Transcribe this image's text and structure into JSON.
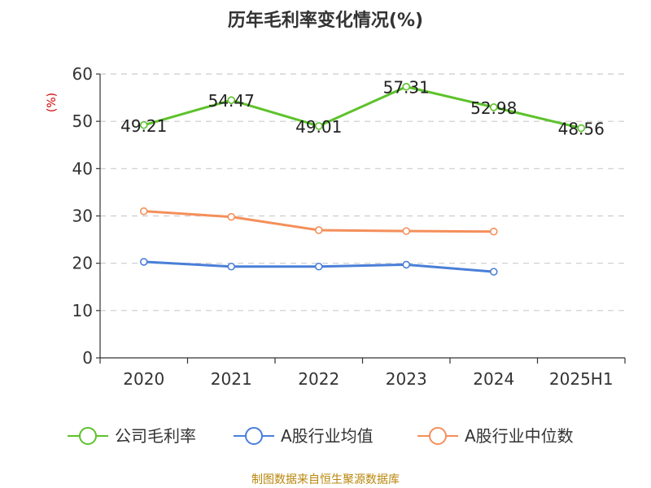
{
  "chart_data": {
    "type": "line",
    "title": "历年毛利率变化情况(%)",
    "ylabel": "(%)",
    "xlabel": "",
    "ylim": [
      0,
      60
    ],
    "yticks": [
      0,
      10,
      20,
      30,
      40,
      50,
      60
    ],
    "categories": [
      "2020",
      "2021",
      "2022",
      "2023",
      "2024",
      "2025H1"
    ],
    "grid": true,
    "legend_position": "bottom",
    "series": [
      {
        "name": "公司毛利率",
        "color": "#5dc22b",
        "values": [
          49.21,
          54.47,
          49.01,
          57.31,
          52.98,
          48.56
        ],
        "labels": [
          "49.21",
          "54.47",
          "49.01",
          "57.31",
          "52.98",
          "48.56"
        ]
      },
      {
        "name": "A股行业均值",
        "color": "#4a7fd8",
        "values": [
          20.3,
          19.3,
          19.3,
          19.7,
          18.2,
          null
        ]
      },
      {
        "name": "A股行业中位数",
        "color": "#f48f5a",
        "values": [
          31.0,
          29.8,
          27.0,
          26.8,
          26.7,
          null
        ]
      }
    ]
  },
  "footer": {
    "source": "制图数据来自恒生聚源数据库"
  }
}
